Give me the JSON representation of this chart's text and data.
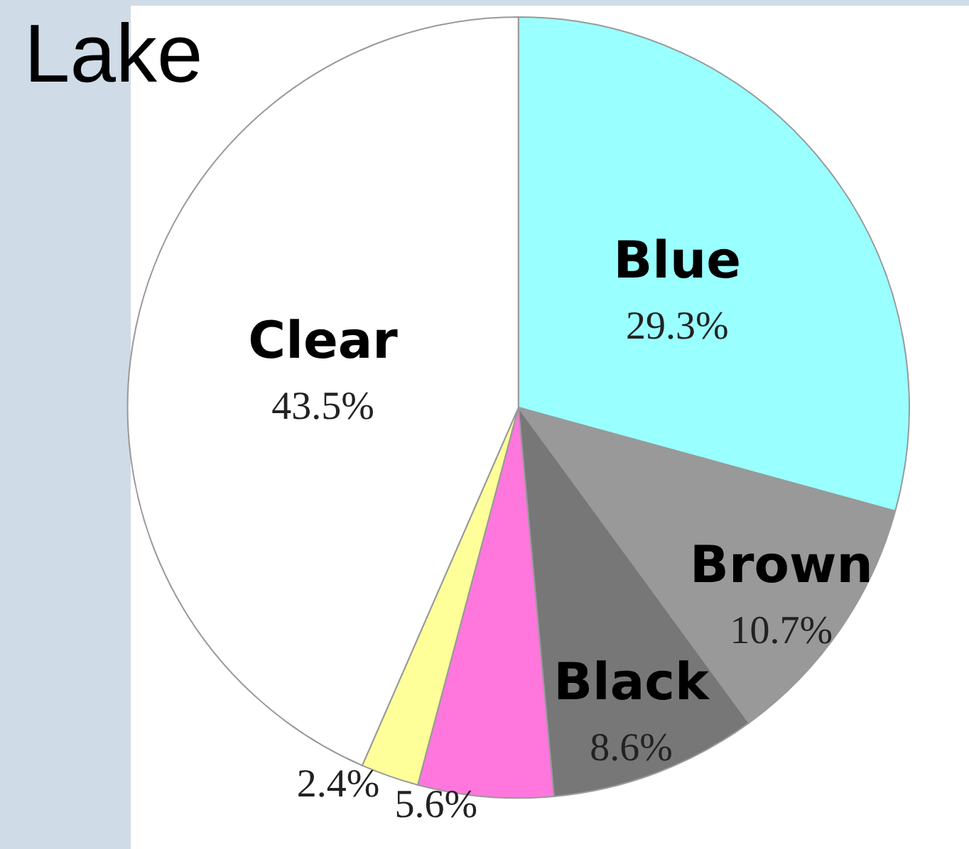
{
  "chart_data": {
    "type": "pie",
    "title": "Lake",
    "categories": [
      "Blue",
      "Brown",
      "Black",
      null,
      null,
      "Clear"
    ],
    "values": [
      29.3,
      10.7,
      8.6,
      5.6,
      2.4,
      43.5
    ],
    "value_labels": [
      "29.3%",
      "10.7%",
      "8.6%",
      "5.6%",
      "2.4%",
      "43.5%"
    ],
    "colors": [
      "#99ffff",
      "#999999",
      "#777777",
      "#ff77dd",
      "#ffff99",
      "#ffffff"
    ],
    "legend": false
  }
}
